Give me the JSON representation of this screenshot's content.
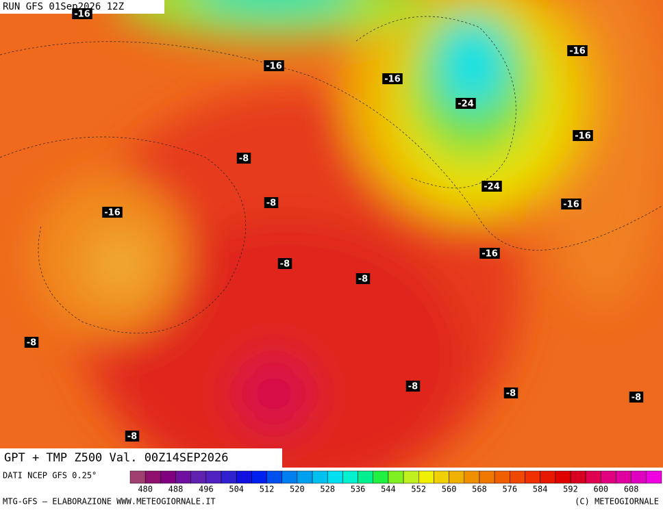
{
  "header": {
    "run": "RUN GFS 01Sep2026 12Z"
  },
  "map": {
    "labels": [
      "-16",
      "-16",
      "-16",
      "-16",
      "-24",
      "-16",
      "-8",
      "-8",
      "-16",
      "-24",
      "-16",
      "-16",
      "-8",
      "-8",
      "-8",
      "-8",
      "-8",
      "-8",
      "-8"
    ]
  },
  "footer": {
    "title": "GPT + TMP Z500 Val. 00Z14SEP2026",
    "source": "DATI NCEP GFS 0.25°",
    "credit": "MTG-GFS — ELABORAZIONE WWW.METEOGIORNALE.IT",
    "copyright": "(C) METEOGIORNALE"
  },
  "colorbar": {
    "colors": [
      "#a04070",
      "#901070",
      "#800080",
      "#7010a0",
      "#6020b0",
      "#5020c0",
      "#3020d0",
      "#1010e0",
      "#0020f0",
      "#0050f0",
      "#0080f0",
      "#00a0f0",
      "#00c0f0",
      "#00e0f0",
      "#00f0d0",
      "#00f090",
      "#20f040",
      "#80f020",
      "#c0f020",
      "#f0f000",
      "#f0d000",
      "#f0b000",
      "#f09000",
      "#f07800",
      "#f06000",
      "#f04800",
      "#f03000",
      "#e81800",
      "#e00000",
      "#d80020",
      "#e00050",
      "#e00080",
      "#e000a0",
      "#e000c0",
      "#f000e0"
    ],
    "ticks": [
      480,
      488,
      496,
      504,
      512,
      520,
      528,
      536,
      544,
      552,
      560,
      568,
      576,
      584,
      592,
      600,
      608
    ]
  }
}
